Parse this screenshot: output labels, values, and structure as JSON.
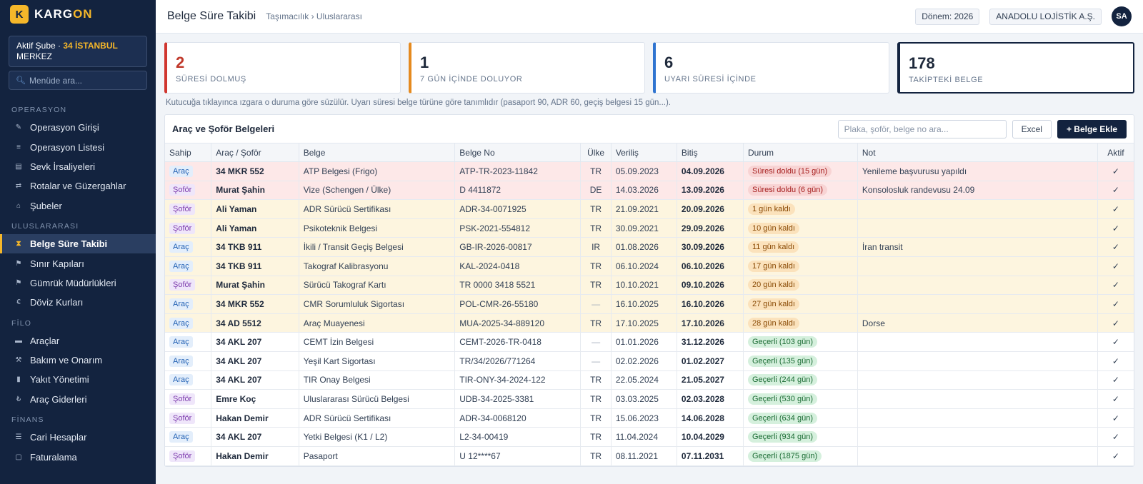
{
  "brand": {
    "logo_letter": "K",
    "name_prefix": "KARG",
    "name_accent": "ON"
  },
  "branch": {
    "label": "Aktif Şube · ",
    "name": "34 İSTANBUL",
    "sub": "MERKEZ"
  },
  "menu_search": {
    "placeholder": "Menüde ara..."
  },
  "nav": {
    "sections": [
      {
        "title": "OPERASYON",
        "items": [
          {
            "label": "Operasyon Girişi",
            "icon": "pencil-icon"
          },
          {
            "label": "Operasyon Listesi",
            "icon": "list-icon"
          },
          {
            "label": "Sevk İrsaliyeleri",
            "icon": "document-icon"
          },
          {
            "label": "Rotalar ve Güzergahlar",
            "icon": "route-icon"
          },
          {
            "label": "Şubeler",
            "icon": "home-icon"
          }
        ]
      },
      {
        "title": "ULUSLARARASI",
        "items": [
          {
            "label": "Belge Süre Takibi",
            "icon": "hourglass-icon",
            "active": true
          },
          {
            "label": "Sınır Kapıları",
            "icon": "flag-icon"
          },
          {
            "label": "Gümrük Müdürlükleri",
            "icon": "flag-icon"
          },
          {
            "label": "Döviz Kurları",
            "icon": "euro-icon"
          }
        ]
      },
      {
        "title": "FİLO",
        "items": [
          {
            "label": "Araçlar",
            "icon": "truck-icon"
          },
          {
            "label": "Bakım ve Onarım",
            "icon": "wrench-icon"
          },
          {
            "label": "Yakıt Yönetimi",
            "icon": "fuel-icon"
          },
          {
            "label": "Araç Giderleri",
            "icon": "lira-icon"
          }
        ]
      },
      {
        "title": "FİNANS",
        "items": [
          {
            "label": "Cari Hesaplar",
            "icon": "ledger-icon"
          },
          {
            "label": "Faturalama",
            "icon": "invoice-icon"
          }
        ]
      }
    ]
  },
  "header": {
    "title": "Belge Süre Takibi",
    "breadcrumb": "Taşımacılık › Uluslararası",
    "period": "Dönem: 2026",
    "company": "ANADOLU LOJİSTİK A.Ş.",
    "avatar": "SA"
  },
  "cards": [
    {
      "value": "2",
      "label": "SÜRESİ DOLMUŞ",
      "color": "#d0362f"
    },
    {
      "value": "1",
      "label": "7 GÜN İÇİNDE DOLUYOR",
      "color": "#e58a1f"
    },
    {
      "value": "6",
      "label": "UYARI SÜRESİ İÇİNDE",
      "color": "#2f74d0"
    },
    {
      "value": "178",
      "label": "TAKİPTEKİ BELGE",
      "color": "#13233f"
    }
  ],
  "hint": "Kutucuğa tıklayınca ızgara o duruma göre süzülür. Uyarı süresi belge türüne göre tanımlıdır (pasaport 90, ADR 60, geçiş belgesi 15 gün...).",
  "panel": {
    "title": "Araç ve Şoför Belgeleri",
    "search_placeholder": "Plaka, şoför, belge no ara...",
    "excel_label": "Excel",
    "add_label": "+ Belge Ekle"
  },
  "table": {
    "columns": [
      "Sahip",
      "Araç / Şoför",
      "Belge",
      "Belge No",
      "Ülke",
      "Veriliş",
      "Bitiş",
      "Durum",
      "Not",
      "Aktif"
    ],
    "rows": [
      {
        "kind": "expired",
        "owner": "Araç",
        "name": "34 MKR 552",
        "doc": "ATP Belgesi (Frigo)",
        "no": "ATP-TR-2023-11842",
        "country": "TR",
        "issued": "05.09.2023",
        "end": "04.09.2026",
        "status": "Süresi doldu (15 gün)",
        "note": "Yenileme başvurusu yapıldı",
        "active": "✓"
      },
      {
        "kind": "expired",
        "owner": "Şoför",
        "name": "Murat Şahin",
        "doc": "Vize (Schengen / Ülke)",
        "no": "D 4411872",
        "country": "DE",
        "issued": "14.03.2026",
        "end": "13.09.2026",
        "status": "Süresi doldu (6 gün)",
        "note": "Konsolosluk randevusu 24.09",
        "active": "✓"
      },
      {
        "kind": "soon",
        "owner": "Şoför",
        "name": "Ali Yaman",
        "doc": "ADR Sürücü Sertifikası",
        "no": "ADR-34-0071925",
        "country": "TR",
        "issued": "21.09.2021",
        "end": "20.09.2026",
        "status": "1 gün kaldı",
        "note": "",
        "active": "✓"
      },
      {
        "kind": "soon",
        "owner": "Şoför",
        "name": "Ali Yaman",
        "doc": "Psikoteknik Belgesi",
        "no": "PSK-2021-554812",
        "country": "TR",
        "issued": "30.09.2021",
        "end": "29.09.2026",
        "status": "10 gün kaldı",
        "note": "",
        "active": "✓"
      },
      {
        "kind": "soon",
        "owner": "Araç",
        "name": "34 TKB 911",
        "doc": "İkili / Transit Geçiş Belgesi",
        "no": "GB-IR-2026-00817",
        "country": "IR",
        "issued": "01.08.2026",
        "end": "30.09.2026",
        "status": "11 gün kaldı",
        "note": "İran transit",
        "active": "✓"
      },
      {
        "kind": "soon",
        "owner": "Araç",
        "name": "34 TKB 911",
        "doc": "Takograf Kalibrasyonu",
        "no": "KAL-2024-0418",
        "country": "TR",
        "issued": "06.10.2024",
        "end": "06.10.2026",
        "status": "17 gün kaldı",
        "note": "",
        "active": "✓"
      },
      {
        "kind": "soon",
        "owner": "Şoför",
        "name": "Murat Şahin",
        "doc": "Sürücü Takograf Kartı",
        "no": "TR 0000 3418 5521",
        "country": "TR",
        "issued": "10.10.2021",
        "end": "09.10.2026",
        "status": "20 gün kaldı",
        "note": "",
        "active": "✓"
      },
      {
        "kind": "soon",
        "owner": "Araç",
        "name": "34 MKR 552",
        "doc": "CMR Sorumluluk Sigortası",
        "no": "POL-CMR-26-55180",
        "country": "—",
        "issued": "16.10.2025",
        "end": "16.10.2026",
        "status": "27 gün kaldı",
        "note": "",
        "active": "✓"
      },
      {
        "kind": "soon",
        "owner": "Araç",
        "name": "34 AD 5512",
        "doc": "Araç Muayenesi",
        "no": "MUA-2025-34-889120",
        "country": "TR",
        "issued": "17.10.2025",
        "end": "17.10.2026",
        "status": "28 gün kaldı",
        "note": "Dorse",
        "active": "✓"
      },
      {
        "kind": "valid",
        "owner": "Araç",
        "name": "34 AKL 207",
        "doc": "CEMT İzin Belgesi",
        "no": "CEMT-2026-TR-0418",
        "country": "—",
        "issued": "01.01.2026",
        "end": "31.12.2026",
        "status": "Geçerli (103 gün)",
        "note": "",
        "active": "✓"
      },
      {
        "kind": "valid",
        "owner": "Araç",
        "name": "34 AKL 207",
        "doc": "Yeşil Kart Sigortası",
        "no": "TR/34/2026/771264",
        "country": "—",
        "issued": "02.02.2026",
        "end": "01.02.2027",
        "status": "Geçerli (135 gün)",
        "note": "",
        "active": "✓"
      },
      {
        "kind": "valid",
        "owner": "Araç",
        "name": "34 AKL 207",
        "doc": "TIR Onay Belgesi",
        "no": "TIR-ONY-34-2024-122",
        "country": "TR",
        "issued": "22.05.2024",
        "end": "21.05.2027",
        "status": "Geçerli (244 gün)",
        "note": "",
        "active": "✓"
      },
      {
        "kind": "valid",
        "owner": "Şoför",
        "name": "Emre Koç",
        "doc": "Uluslararası Sürücü Belgesi",
        "no": "UDB-34-2025-3381",
        "country": "TR",
        "issued": "03.03.2025",
        "end": "02.03.2028",
        "status": "Geçerli (530 gün)",
        "note": "",
        "active": "✓"
      },
      {
        "kind": "valid",
        "owner": "Şoför",
        "name": "Hakan Demir",
        "doc": "ADR Sürücü Sertifikası",
        "no": "ADR-34-0068120",
        "country": "TR",
        "issued": "15.06.2023",
        "end": "14.06.2028",
        "status": "Geçerli (634 gün)",
        "note": "",
        "active": "✓"
      },
      {
        "kind": "valid",
        "owner": "Araç",
        "name": "34 AKL 207",
        "doc": "Yetki Belgesi (K1 / L2)",
        "no": "L2-34-00419",
        "country": "TR",
        "issued": "11.04.2024",
        "end": "10.04.2029",
        "status": "Geçerli (934 gün)",
        "note": "",
        "active": "✓"
      },
      {
        "kind": "valid",
        "owner": "Şoför",
        "name": "Hakan Demir",
        "doc": "Pasaport",
        "no": "U 12****67",
        "country": "TR",
        "issued": "08.11.2021",
        "end": "07.11.2031",
        "status": "Geçerli (1875 gün)",
        "note": "",
        "active": "✓"
      }
    ]
  }
}
